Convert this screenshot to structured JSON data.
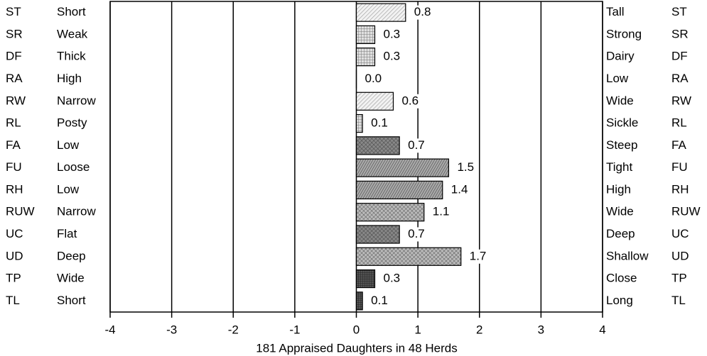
{
  "chart_data": {
    "type": "bar",
    "orientation": "horizontal",
    "codes": [
      "ST",
      "SR",
      "DF",
      "RA",
      "RW",
      "RL",
      "FA",
      "FU",
      "RH",
      "RUW",
      "UC",
      "UD",
      "TP",
      "TL"
    ],
    "low_labels": [
      "Short",
      "Weak",
      "Thick",
      "High",
      "Narrow",
      "Posty",
      "Low",
      "Loose",
      "Low",
      "Narrow",
      "Flat",
      "Deep",
      "Wide",
      "Short"
    ],
    "high_labels": [
      "Tall",
      "Strong",
      "Dairy",
      "Low",
      "Wide",
      "Sickle",
      "Steep",
      "Tight",
      "High",
      "Wide",
      "Deep",
      "Shallow",
      "Close",
      "Long"
    ],
    "values": [
      0.8,
      0.3,
      0.3,
      0,
      0.6,
      0.1,
      0.7,
      1.5,
      1.4,
      1.1,
      0.7,
      1.7,
      0.3,
      0.1
    ],
    "value_labels": [
      "0.8",
      "0.3",
      "0.3",
      "0.0",
      "0.6",
      "0.1",
      "0.7",
      "1.5",
      "1.4",
      "1.1",
      "0.7",
      "1.7",
      "0.3",
      "0.1"
    ],
    "xlabel": "181 Appraised Daughters in 48 Herds",
    "xlim": [
      -4,
      4
    ],
    "xticks": [
      -4,
      -3,
      -2,
      -1,
      0,
      1,
      2,
      3,
      4
    ],
    "grid": true
  }
}
